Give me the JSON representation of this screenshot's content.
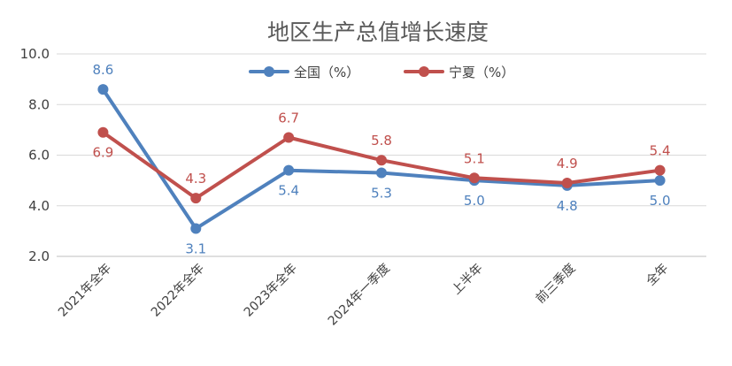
{
  "chart_data": {
    "type": "line",
    "title": "地区生产总值增长速度",
    "categories": [
      "2021年全年",
      "2022年全年",
      "2023年全年",
      "2024年一季度",
      "上半年",
      "前三季度",
      "全年"
    ],
    "series": [
      {
        "name": "全国（%）",
        "color": "#4f81bd",
        "values": [
          8.6,
          3.1,
          5.4,
          5.3,
          5.0,
          4.8,
          5.0
        ],
        "labels": [
          "8.6",
          "3.1",
          "5.4",
          "5.3",
          "5.0",
          "4.8",
          "5.0"
        ]
      },
      {
        "name": "宁夏（%）",
        "color": "#c0504d",
        "values": [
          6.9,
          4.3,
          6.7,
          5.8,
          5.1,
          4.9,
          5.4
        ],
        "labels": [
          "6.9",
          "4.3",
          "6.7",
          "5.8",
          "5.1",
          "4.9",
          "5.4"
        ]
      }
    ],
    "ylim": [
      2.0,
      10.0
    ],
    "yticks": [
      "2.0",
      "4.0",
      "6.0",
      "8.0",
      "10.0"
    ],
    "grid": true,
    "legend_position": "top"
  }
}
